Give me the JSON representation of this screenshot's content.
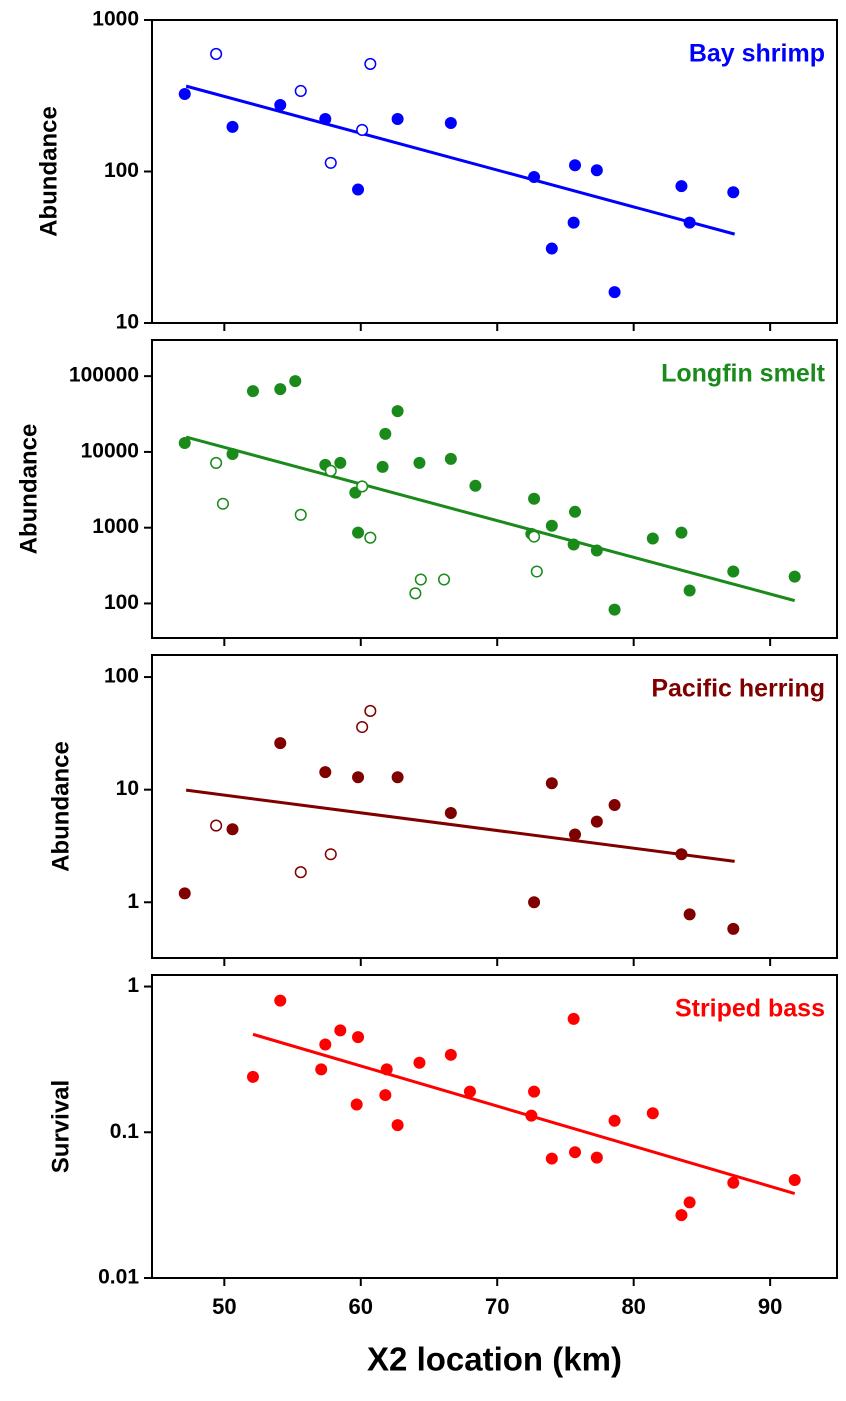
{
  "chart_data": [
    {
      "type": "scatter",
      "annotation": "Bay shrimp",
      "ylabel": "Abundance",
      "color": "#0000ff",
      "log_y": true,
      "xlim": [
        44.7,
        94.9
      ],
      "xticks": [
        50,
        60,
        70,
        80,
        90
      ],
      "ylim": [
        10,
        1000
      ],
      "yticks": [
        10,
        100,
        1000
      ],
      "series": [
        {
          "filled": true,
          "x": [
            47.1,
            50.6,
            54.1,
            57.4,
            59.8,
            62.7,
            66.6,
            72.7,
            75.7,
            75.6,
            74.0,
            77.3,
            78.6,
            83.5,
            84.1,
            87.3
          ],
          "values": [
            325,
            197,
            275,
            222,
            76,
            222,
            209,
            92,
            110,
            46,
            31,
            102,
            16,
            80,
            46,
            73
          ]
        },
        {
          "filled": false,
          "x": [
            49.4,
            55.6,
            57.8,
            60.1,
            60.7
          ],
          "values": [
            597,
            340,
            114,
            188,
            513
          ]
        }
      ],
      "fit": {
        "x": [
          47.2,
          87.4
        ],
        "values": [
          366,
          38.6
        ]
      }
    },
    {
      "type": "scatter",
      "annotation": "Longfin smelt",
      "ylabel": "Abundance",
      "color": "#1a8a1a",
      "log_y": true,
      "xlim": [
        44.7,
        94.9
      ],
      "xticks": [
        50,
        60,
        70,
        80,
        90
      ],
      "ylim": [
        35,
        300000
      ],
      "yticks": [
        100,
        1000,
        10000,
        100000
      ],
      "series": [
        {
          "filled": true,
          "x": [
            47.1,
            50.6,
            52.1,
            54.1,
            55.2,
            57.4,
            58.5,
            59.6,
            59.8,
            61.8,
            61.6,
            62.7,
            64.3,
            66.6,
            68.4,
            72.7,
            72.5,
            74.0,
            75.7,
            75.6,
            77.3,
            78.6,
            81.4,
            83.5,
            84.1,
            87.3,
            91.8
          ],
          "values": [
            13100,
            9400,
            63500,
            67400,
            86000,
            6750,
            7160,
            2900,
            860,
            17300,
            6350,
            34600,
            7160,
            8100,
            3570,
            2410,
            830,
            1060,
            1620,
            600,
            500,
            83,
            720,
            860,
            148,
            264,
            226
          ]
        },
        {
          "filled": false,
          "x": [
            49.4,
            49.9,
            55.6,
            57.8,
            60.1,
            60.7,
            64.0,
            64.4,
            66.1,
            72.7,
            72.9
          ],
          "values": [
            7160,
            2070,
            1480,
            5630,
            3500,
            738,
            136,
            207,
            207,
            762,
            264
          ]
        }
      ],
      "fit": {
        "x": [
          47.2,
          91.8
        ],
        "values": [
          15700,
          109
        ]
      }
    },
    {
      "type": "scatter",
      "annotation": "Pacific herring",
      "ylabel": "Abundance",
      "color": "#800000",
      "log_y": true,
      "xlim": [
        44.7,
        94.9
      ],
      "xticks": [
        50,
        60,
        70,
        80,
        90
      ],
      "ylim": [
        0.32,
        157
      ],
      "yticks": [
        1,
        10,
        100
      ],
      "series": [
        {
          "filled": true,
          "x": [
            47.1,
            50.6,
            54.1,
            57.4,
            59.8,
            62.7,
            66.6,
            72.7,
            74.0,
            75.7,
            77.3,
            78.6,
            83.5,
            84.1,
            87.3
          ],
          "values": [
            1.2,
            4.45,
            25.9,
            14.3,
            12.9,
            12.9,
            6.2,
            1.0,
            11.4,
            4.0,
            5.2,
            7.3,
            2.67,
            0.78,
            0.58
          ]
        },
        {
          "filled": false,
          "x": [
            49.4,
            55.6,
            57.8,
            60.1,
            60.7
          ],
          "values": [
            4.8,
            1.85,
            2.67,
            36,
            50
          ]
        }
      ],
      "fit": {
        "x": [
          47.2,
          87.4
        ],
        "values": [
          9.9,
          2.31
        ]
      }
    },
    {
      "type": "scatter",
      "annotation": "Striped bass",
      "ylabel": "Survival",
      "xlabel": "X2 location (km)",
      "color": "#ff0000",
      "log_y": true,
      "xlim": [
        44.7,
        94.9
      ],
      "xticks": [
        50,
        60,
        70,
        80,
        90
      ],
      "ylim": [
        0.01,
        1.2
      ],
      "yticks": [
        0.01,
        0.1,
        1
      ],
      "series": [
        {
          "filled": true,
          "x": [
            52.1,
            54.1,
            57.1,
            57.4,
            58.5,
            59.7,
            59.8,
            61.8,
            61.9,
            62.7,
            64.3,
            66.6,
            68.0,
            72.5,
            72.7,
            74.0,
            75.6,
            75.7,
            77.3,
            78.6,
            81.4,
            83.5,
            84.1,
            87.3,
            91.8
          ],
          "values": [
            0.24,
            0.8,
            0.27,
            0.4,
            0.5,
            0.155,
            0.45,
            0.18,
            0.27,
            0.112,
            0.3,
            0.34,
            0.19,
            0.13,
            0.19,
            0.066,
            0.6,
            0.073,
            0.067,
            0.12,
            0.135,
            0.027,
            0.033,
            0.045,
            0.047
          ]
        }
      ],
      "fit": {
        "x": [
          52.1,
          91.8
        ],
        "values": [
          0.47,
          0.038
        ]
      }
    }
  ]
}
